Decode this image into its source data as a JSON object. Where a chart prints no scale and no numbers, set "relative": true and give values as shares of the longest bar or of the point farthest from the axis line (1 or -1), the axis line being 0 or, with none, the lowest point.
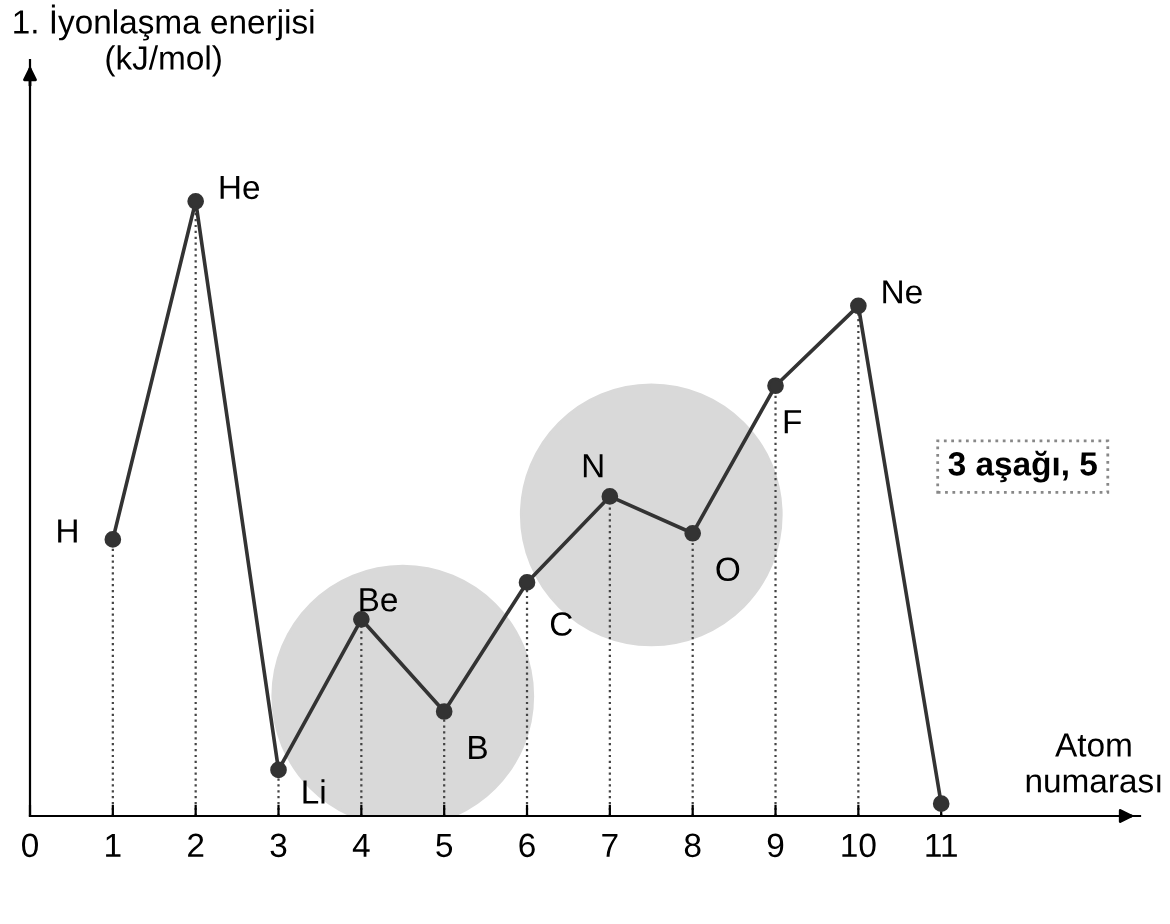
{
  "chart_data": {
    "type": "line",
    "relative": true,
    "ylabel": "1. İyonlaşma enerjisi\n(kJ/mol)",
    "xlabel": "Atom\nnumarası",
    "x": [
      1,
      2,
      3,
      4,
      5,
      6,
      7,
      8,
      9,
      10,
      11
    ],
    "values": [
      0.45,
      1,
      0.075,
      0.32,
      0.17,
      0.38,
      0.52,
      0.46,
      0.7,
      0.83,
      0.02
    ],
    "color": "#333333",
    "marker": "circle",
    "line_style": "solid",
    "grid": "x",
    "xlim": [
      0,
      13.4
    ],
    "xticks": [
      0,
      1,
      2,
      3,
      4,
      5,
      6,
      7,
      8,
      9,
      10,
      11
    ],
    "annotations": [
      {
        "text": "H",
        "x": 1,
        "y": 0.45
      },
      {
        "text": "He",
        "x": 2,
        "y": 1
      },
      {
        "text": "Li",
        "x": 3,
        "y": 0.075
      },
      {
        "text": "Be",
        "x": 4,
        "y": 0.32
      },
      {
        "text": "B",
        "x": 5,
        "y": 0.17
      },
      {
        "text": "C",
        "x": 6,
        "y": 0.38
      },
      {
        "text": "N",
        "x": 7,
        "y": 0.52
      },
      {
        "text": "O",
        "x": 8,
        "y": 0.46
      },
      {
        "text": "F",
        "x": 9,
        "y": 0.7
      },
      {
        "text": "Ne",
        "x": 10,
        "y": 0.83
      },
      "3 aşağı, 5"
    ]
  }
}
